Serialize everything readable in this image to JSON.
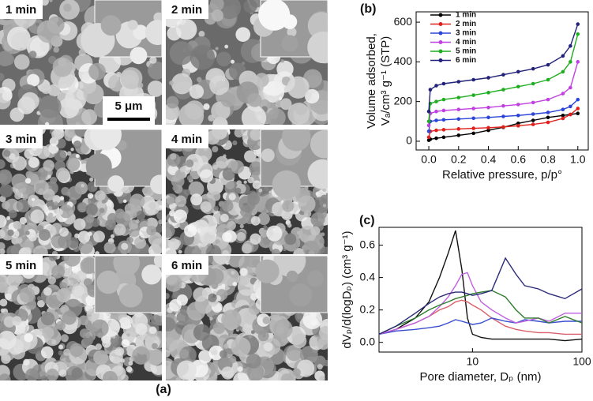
{
  "sem_panels": {
    "labels": [
      "1 min",
      "2 min",
      "3 min",
      "4 min",
      "5 min",
      "6 min"
    ],
    "scale_bar": "5 μm",
    "caption": "(a)"
  },
  "chart_data": [
    {
      "type": "line",
      "label": "(b)",
      "xlabel": "Relative pressure, p/p°",
      "ylabel": [
        "Volume adsorbed,",
        "Vₐ/cm³ g⁻¹ (STP)"
      ],
      "x": [
        0,
        0.01,
        0.05,
        0.1,
        0.2,
        0.3,
        0.4,
        0.5,
        0.6,
        0.7,
        0.8,
        0.9,
        0.95,
        1.0
      ],
      "series": [
        {
          "name": "1 min",
          "color": "#000000",
          "values": [
            5,
            10,
            15,
            20,
            30,
            40,
            55,
            70,
            90,
            105,
            120,
            130,
            135,
            140
          ]
        },
        {
          "name": "2 min",
          "color": "#e0201b",
          "values": [
            20,
            50,
            55,
            58,
            62,
            65,
            68,
            72,
            78,
            85,
            95,
            115,
            135,
            165
          ]
        },
        {
          "name": "3 min",
          "color": "#2a45d8",
          "values": [
            50,
            100,
            105,
            108,
            112,
            116,
            120,
            125,
            130,
            137,
            145,
            160,
            175,
            210
          ]
        },
        {
          "name": "4 min",
          "color": "#c040e0",
          "values": [
            80,
            140,
            150,
            155,
            160,
            165,
            170,
            178,
            185,
            195,
            210,
            240,
            270,
            400
          ]
        },
        {
          "name": "5 min",
          "color": "#1fae1f",
          "values": [
            100,
            190,
            200,
            210,
            220,
            232,
            245,
            260,
            275,
            290,
            310,
            350,
            400,
            540
          ]
        },
        {
          "name": "6 min",
          "color": "#22227a",
          "values": [
            150,
            260,
            280,
            290,
            300,
            310,
            320,
            335,
            350,
            365,
            385,
            430,
            480,
            590
          ]
        }
      ],
      "xlim": [
        -0.085,
        1.07
      ],
      "ylim": [
        -44,
        652
      ],
      "xticks": [
        {
          "value": 0,
          "label": "0.0"
        },
        0.2,
        0.4,
        0.6,
        0.8,
        {
          "value": 1,
          "label": "1.0"
        }
      ],
      "yticks": [
        0,
        200,
        400,
        600
      ],
      "legend": "top-left",
      "markers": true
    },
    {
      "type": "line",
      "label": "(c)",
      "xlabel": "Pore diameter, Dₚ (nm)",
      "ylabel": [
        "dVₚ/d(logDₚ) (cm³ g⁻¹)"
      ],
      "x": [
        1.4,
        2,
        3,
        4,
        5,
        6,
        7,
        8,
        9,
        10,
        12,
        15,
        20,
        25,
        30,
        40,
        50,
        70,
        100
      ],
      "series": [
        {
          "color": "#111111",
          "values": [
            0.05,
            0.08,
            0.15,
            0.25,
            0.4,
            0.55,
            0.69,
            0.45,
            0.15,
            0.05,
            0.03,
            0.02,
            0.02,
            0.02,
            0.02,
            0.02,
            0.02,
            0.01,
            0.02
          ]
        },
        {
          "color": "#d9606a",
          "values": [
            0.05,
            0.08,
            0.12,
            0.16,
            0.2,
            0.22,
            0.25,
            0.26,
            0.25,
            0.23,
            0.2,
            0.15,
            0.1,
            0.08,
            0.07,
            0.06,
            0.06,
            0.05,
            0.05
          ]
        },
        {
          "color": "#3a4fd0",
          "values": [
            0.05,
            0.07,
            0.08,
            0.09,
            0.1,
            0.12,
            0.14,
            0.13,
            0.12,
            0.11,
            0.12,
            0.15,
            0.13,
            0.12,
            0.14,
            0.13,
            0.12,
            0.13,
            0.13
          ]
        },
        {
          "color": "#c060e0",
          "values": [
            0.05,
            0.08,
            0.12,
            0.16,
            0.22,
            0.28,
            0.35,
            0.42,
            0.43,
            0.35,
            0.25,
            0.2,
            0.15,
            0.12,
            0.13,
            0.15,
            0.13,
            0.18,
            0.18
          ]
        },
        {
          "color": "#2f7d2f",
          "values": [
            0.05,
            0.1,
            0.15,
            0.2,
            0.23,
            0.25,
            0.27,
            0.28,
            0.29,
            0.3,
            0.31,
            0.32,
            0.28,
            0.2,
            0.15,
            0.15,
            0.12,
            0.16,
            0.12
          ]
        },
        {
          "color": "#2a2a78",
          "values": [
            0.05,
            0.1,
            0.18,
            0.24,
            0.28,
            0.3,
            0.31,
            0.31,
            0.3,
            0.29,
            0.3,
            0.32,
            0.52,
            0.42,
            0.35,
            0.33,
            0.3,
            0.27,
            0.33
          ]
        }
      ],
      "xscale": "log",
      "xlim": [
        1.4,
        100
      ],
      "ylim": [
        -0.06,
        0.71
      ],
      "xticks": [
        10,
        100
      ],
      "yticks": [
        {
          "value": 0,
          "label": "0.0"
        },
        0.2,
        0.4,
        0.6
      ],
      "markers": false
    }
  ]
}
